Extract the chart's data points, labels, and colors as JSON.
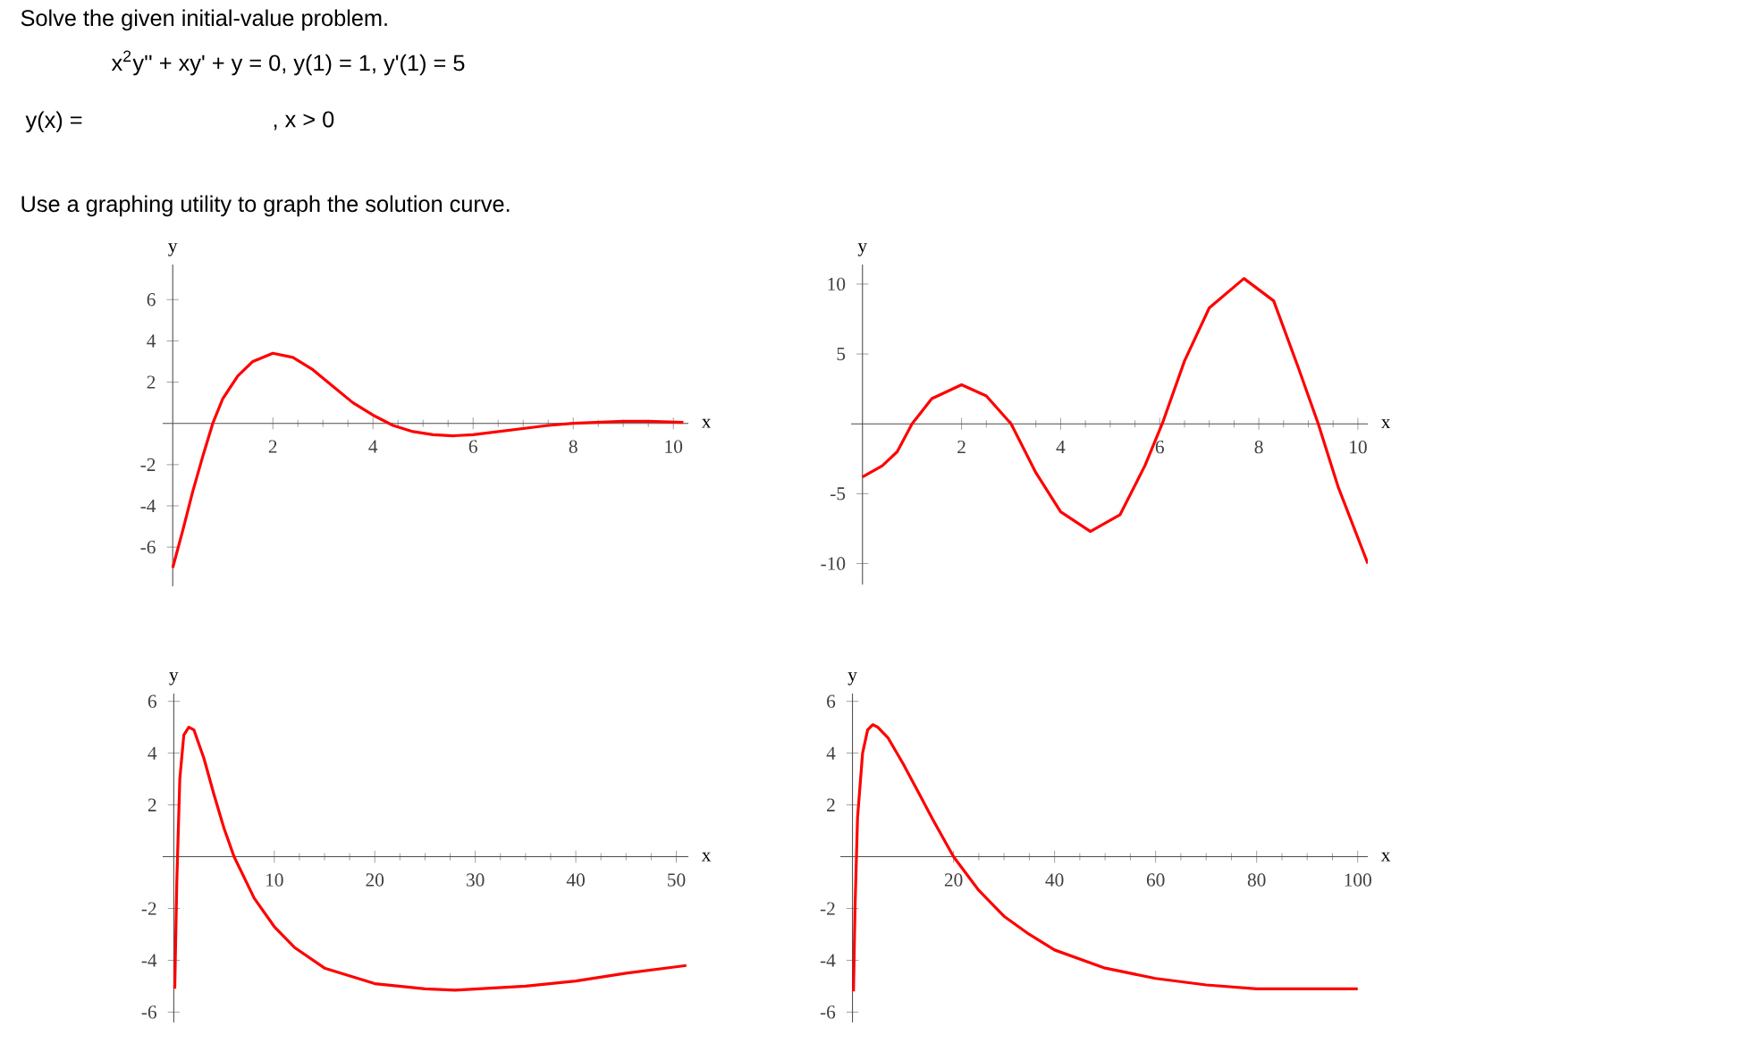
{
  "chart_data": [
    {
      "type": "line",
      "title": "Solve the given initial-value problem.",
      "annotations": [
        "x$^{2}$y'' + xy' + y = 0,  y(1) = 1, y'(1) = 5",
        "y(x) =",
        ", x > 0",
        "Use a graphing utility to graph the solution curve."
      ],
      "xlabel": "x",
      "ylabel": "y",
      "xlim": [
        -0.2,
        10.3
      ],
      "ylim": [
        -7.9,
        7.7
      ],
      "xticks": [
        2,
        4,
        6,
        8,
        10
      ],
      "yticks": [
        -6,
        -4,
        -2,
        2,
        4,
        6
      ],
      "grid": false,
      "series": [
        {
          "color": "#ff0000",
          "x": [
            0,
            0.2,
            0.4,
            0.6,
            0.8,
            1.0,
            1.3,
            1.6,
            2.0,
            2.4,
            2.8,
            3.2,
            3.6,
            4.0,
            4.4,
            4.8,
            5.2,
            5.6,
            6.0,
            6.5,
            7.0,
            7.5,
            8.0,
            8.5,
            9.0,
            9.5,
            10.2
          ],
          "values": [
            -7,
            -5.2,
            -3.3,
            -1.6,
            0,
            1.2,
            2.3,
            3.0,
            3.4,
            3.2,
            2.6,
            1.8,
            1.0,
            0.4,
            -0.1,
            -0.4,
            -0.55,
            -0.6,
            -0.55,
            -0.4,
            -0.25,
            -0.1,
            0,
            0.05,
            0.1,
            0.1,
            0.05
          ]
        }
      ]
    },
    {
      "type": "line",
      "xlabel": "x",
      "ylabel": "y",
      "xlim": [
        -0.23,
        10.2
      ],
      "ylim": [
        -11.5,
        11.4
      ],
      "xticks": [
        2,
        4,
        6,
        8,
        10
      ],
      "yticks": [
        -10,
        -5,
        5,
        10
      ],
      "grid": false,
      "series": [
        {
          "color": "#ff0000",
          "x": [
            0,
            0.4,
            0.7,
            1.0,
            1.4,
            2.0,
            2.5,
            3.0,
            3.5,
            4.0,
            4.6,
            5.2,
            5.7,
            6.05,
            6.5,
            7.0,
            7.7,
            8.3,
            8.8,
            9.2,
            9.6,
            10.2
          ],
          "values": [
            -3.8,
            -3.0,
            -2,
            0,
            1.8,
            2.8,
            2.0,
            0,
            -3.5,
            -6.3,
            -7.7,
            -6.5,
            -3,
            0,
            4.5,
            8.3,
            10.4,
            8.8,
            4,
            0,
            -4.5,
            -10
          ]
        }
      ]
    },
    {
      "type": "line",
      "xlabel": "x",
      "ylabel": "y",
      "xlim": [
        -1.1,
        51.2
      ],
      "ylim": [
        -6.4,
        6.3
      ],
      "xticks": [
        10,
        20,
        30,
        40,
        50
      ],
      "yticks": [
        -6,
        -4,
        -2,
        2,
        4,
        6
      ],
      "grid": false,
      "series": [
        {
          "color": "#ff0000",
          "x": [
            0.1,
            0.3,
            0.6,
            1,
            1.5,
            2,
            3,
            4,
            5,
            6,
            8,
            10,
            12,
            15,
            20,
            25,
            28,
            35,
            40,
            45,
            51
          ],
          "values": [
            -5.1,
            -1,
            3,
            4.7,
            5.0,
            4.9,
            3.8,
            2.4,
            1.1,
            0,
            -1.6,
            -2.7,
            -3.5,
            -4.3,
            -4.9,
            -5.1,
            -5.15,
            -5.0,
            -4.8,
            -4.5,
            -4.2
          ]
        }
      ]
    },
    {
      "type": "line",
      "xlabel": "x",
      "ylabel": "y",
      "xlim": [
        -2.4,
        102
      ],
      "ylim": [
        -6.4,
        6.3
      ],
      "xticks": [
        20,
        40,
        60,
        80,
        100
      ],
      "yticks": [
        -6,
        -4,
        -2,
        2,
        4,
        6
      ],
      "grid": false,
      "series": [
        {
          "color": "#ff0000",
          "x": [
            0.2,
            0.5,
            1,
            2,
            3,
            4,
            5,
            7,
            10,
            13,
            16,
            20,
            25,
            30,
            35,
            40,
            50,
            60,
            70,
            80,
            90,
            100
          ],
          "values": [
            -5.2,
            -2,
            1.5,
            4,
            4.9,
            5.1,
            5.0,
            4.6,
            3.6,
            2.5,
            1.4,
            0,
            -1.3,
            -2.3,
            -3.0,
            -3.6,
            -4.3,
            -4.7,
            -4.95,
            -5.1,
            -5.1,
            -5.1
          ]
        }
      ]
    }
  ]
}
